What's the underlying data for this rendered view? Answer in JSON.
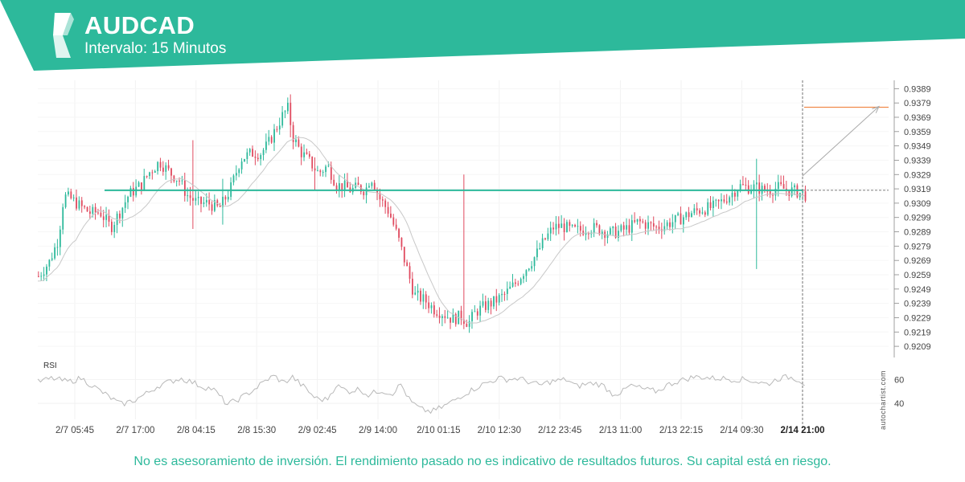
{
  "header": {
    "symbol": "AUDCAD",
    "interval_label": "Intervalo: 15 Minutos",
    "brand_color": "#2db99b"
  },
  "watermark": "autochartist.com",
  "disclaimer": "No es asesoramiento de inversión. El rendimiento pasado no es indicativo de resultados futuros. Su capital está en riesgo.",
  "chart_data": {
    "type": "candlestick",
    "price_axis": {
      "ticks": [
        0.9389,
        0.9379,
        0.9369,
        0.9359,
        0.9349,
        0.9339,
        0.9329,
        0.9319,
        0.9309,
        0.9299,
        0.9289,
        0.9279,
        0.9269,
        0.9259,
        0.9249,
        0.9239,
        0.9229,
        0.9219,
        0.9209
      ],
      "range": [
        0.9204,
        0.9392
      ]
    },
    "time_axis": {
      "labels": [
        "2/7 05:45",
        "2/7 17:00",
        "2/8 04:15",
        "2/8 15:30",
        "2/9 02:45",
        "2/9 14:00",
        "2/10 01:15",
        "2/10 12:30",
        "2/12 23:45",
        "2/13 11:00",
        "2/13 22:15",
        "2/14 09:30",
        "2/14 21:00"
      ],
      "current_label": "2/14 21:00"
    },
    "candle_colors": {
      "up": "#2db99b",
      "down": "#e04a5f"
    },
    "path_points": [
      [
        0,
        0.9258
      ],
      [
        12,
        0.9268
      ],
      [
        22,
        0.9284
      ],
      [
        28,
        0.9314
      ],
      [
        36,
        0.9312
      ],
      [
        48,
        0.9306
      ],
      [
        58,
        0.9302
      ],
      [
        68,
        0.9303
      ],
      [
        80,
        0.9292
      ],
      [
        92,
        0.9305
      ],
      [
        100,
        0.9315
      ],
      [
        114,
        0.9322
      ],
      [
        122,
        0.933
      ],
      [
        134,
        0.9338
      ],
      [
        146,
        0.933
      ],
      [
        156,
        0.9325
      ],
      [
        164,
        0.9315
      ],
      [
        176,
        0.9309
      ],
      [
        188,
        0.9309
      ],
      [
        200,
        0.9305
      ],
      [
        212,
        0.9318
      ],
      [
        224,
        0.934
      ],
      [
        236,
        0.9344
      ],
      [
        246,
        0.9344
      ],
      [
        254,
        0.935
      ],
      [
        262,
        0.936
      ],
      [
        270,
        0.937
      ],
      [
        276,
        0.9375
      ],
      [
        282,
        0.9355
      ],
      [
        290,
        0.9345
      ],
      [
        300,
        0.9338
      ],
      [
        310,
        0.933
      ],
      [
        320,
        0.9335
      ],
      [
        330,
        0.9322
      ],
      [
        340,
        0.932
      ],
      [
        346,
        0.9318
      ],
      [
        354,
        0.932
      ],
      [
        362,
        0.9318
      ],
      [
        368,
        0.9328
      ],
      [
        378,
        0.9312
      ],
      [
        388,
        0.9303
      ],
      [
        398,
        0.9285
      ],
      [
        408,
        0.9263
      ],
      [
        416,
        0.9245
      ],
      [
        428,
        0.9241
      ],
      [
        438,
        0.9235
      ],
      [
        448,
        0.9232
      ],
      [
        458,
        0.9228
      ],
      [
        468,
        0.923
      ],
      [
        476,
        0.9225
      ],
      [
        484,
        0.9233
      ],
      [
        494,
        0.9237
      ],
      [
        504,
        0.924
      ],
      [
        516,
        0.9245
      ],
      [
        528,
        0.9253
      ],
      [
        538,
        0.9262
      ],
      [
        550,
        0.9272
      ],
      [
        560,
        0.9283
      ],
      [
        570,
        0.9292
      ],
      [
        580,
        0.9293
      ],
      [
        590,
        0.929
      ],
      [
        600,
        0.929
      ],
      [
        610,
        0.9292
      ],
      [
        620,
        0.9291
      ],
      [
        632,
        0.9288
      ],
      [
        642,
        0.9289
      ],
      [
        654,
        0.9292
      ],
      [
        664,
        0.9296
      ],
      [
        674,
        0.9294
      ],
      [
        684,
        0.9292
      ],
      [
        694,
        0.9294
      ],
      [
        706,
        0.9297
      ],
      [
        716,
        0.93
      ],
      [
        726,
        0.9303
      ],
      [
        736,
        0.9305
      ],
      [
        746,
        0.9306
      ],
      [
        756,
        0.931
      ],
      [
        766,
        0.9315
      ],
      [
        776,
        0.9321
      ],
      [
        786,
        0.932
      ],
      [
        795,
        0.932
      ],
      [
        802,
        0.9318
      ],
      [
        810,
        0.9318
      ],
      [
        820,
        0.932
      ],
      [
        830,
        0.9318
      ],
      [
        840,
        0.9317
      ],
      [
        852,
        0.9314
      ]
    ],
    "spikes": [
      {
        "index": 170,
        "high": 0.9353,
        "low": 0.9291
      },
      {
        "index": 205,
        "high": 0.9326,
        "low": 0.9294
      },
      {
        "index": 278,
        "high": 0.9385,
        "low": 0.9355
      },
      {
        "index": 305,
        "high": 0.9341,
        "low": 0.9318
      },
      {
        "index": 470,
        "high": 0.9329,
        "low": 0.9221
      },
      {
        "index": 795,
        "high": 0.934,
        "low": 0.9263
      }
    ],
    "support_level": {
      "value": 0.9318,
      "color": "#2db99b"
    },
    "current_price": {
      "value": 0.9318
    },
    "target_level": {
      "value": 0.9376,
      "color": "#f08a4b"
    },
    "projection": {
      "from": 0.9328,
      "to": 0.9376
    },
    "moving_average": {
      "color": "#c8c8c8"
    },
    "rsi": {
      "label": "RSI",
      "ticks": [
        60,
        40
      ],
      "range": [
        28,
        75
      ],
      "path_points": [
        [
          0,
          58
        ],
        [
          16,
          61
        ],
        [
          34,
          58
        ],
        [
          48,
          61
        ],
        [
          60,
          55
        ],
        [
          78,
          46
        ],
        [
          92,
          39
        ],
        [
          108,
          43
        ],
        [
          122,
          49
        ],
        [
          134,
          55
        ],
        [
          146,
          58
        ],
        [
          158,
          61
        ],
        [
          170,
          58
        ],
        [
          182,
          54
        ],
        [
          194,
          52
        ],
        [
          210,
          39
        ],
        [
          226,
          45
        ],
        [
          240,
          52
        ],
        [
          254,
          60
        ],
        [
          262,
          63
        ],
        [
          272,
          57
        ],
        [
          282,
          62
        ],
        [
          294,
          54
        ],
        [
          308,
          44
        ],
        [
          320,
          43
        ],
        [
          330,
          55
        ],
        [
          344,
          50
        ],
        [
          356,
          52
        ],
        [
          366,
          47
        ],
        [
          380,
          51
        ],
        [
          392,
          48
        ],
        [
          402,
          56
        ],
        [
          412,
          42
        ],
        [
          424,
          35
        ],
        [
          436,
          33
        ],
        [
          448,
          37
        ],
        [
          460,
          42
        ],
        [
          470,
          47
        ],
        [
          480,
          51
        ],
        [
          490,
          55
        ],
        [
          500,
          58
        ],
        [
          510,
          61
        ],
        [
          520,
          60
        ],
        [
          532,
          61
        ],
        [
          544,
          58
        ],
        [
          556,
          55
        ],
        [
          566,
          58
        ],
        [
          576,
          59
        ],
        [
          586,
          60
        ],
        [
          596,
          54
        ],
        [
          606,
          56
        ],
        [
          616,
          57
        ],
        [
          626,
          55
        ],
        [
          636,
          48
        ],
        [
          646,
          49
        ],
        [
          656,
          55
        ],
        [
          666,
          53
        ],
        [
          676,
          51
        ],
        [
          686,
          50
        ],
        [
          696,
          55
        ],
        [
          706,
          58
        ],
        [
          716,
          60
        ],
        [
          726,
          62
        ],
        [
          736,
          62
        ],
        [
          746,
          61
        ],
        [
          756,
          61
        ],
        [
          770,
          60
        ],
        [
          784,
          60
        ],
        [
          796,
          58
        ],
        [
          808,
          56
        ],
        [
          820,
          61
        ],
        [
          832,
          62
        ],
        [
          842,
          60
        ],
        [
          852,
          55
        ]
      ]
    }
  }
}
